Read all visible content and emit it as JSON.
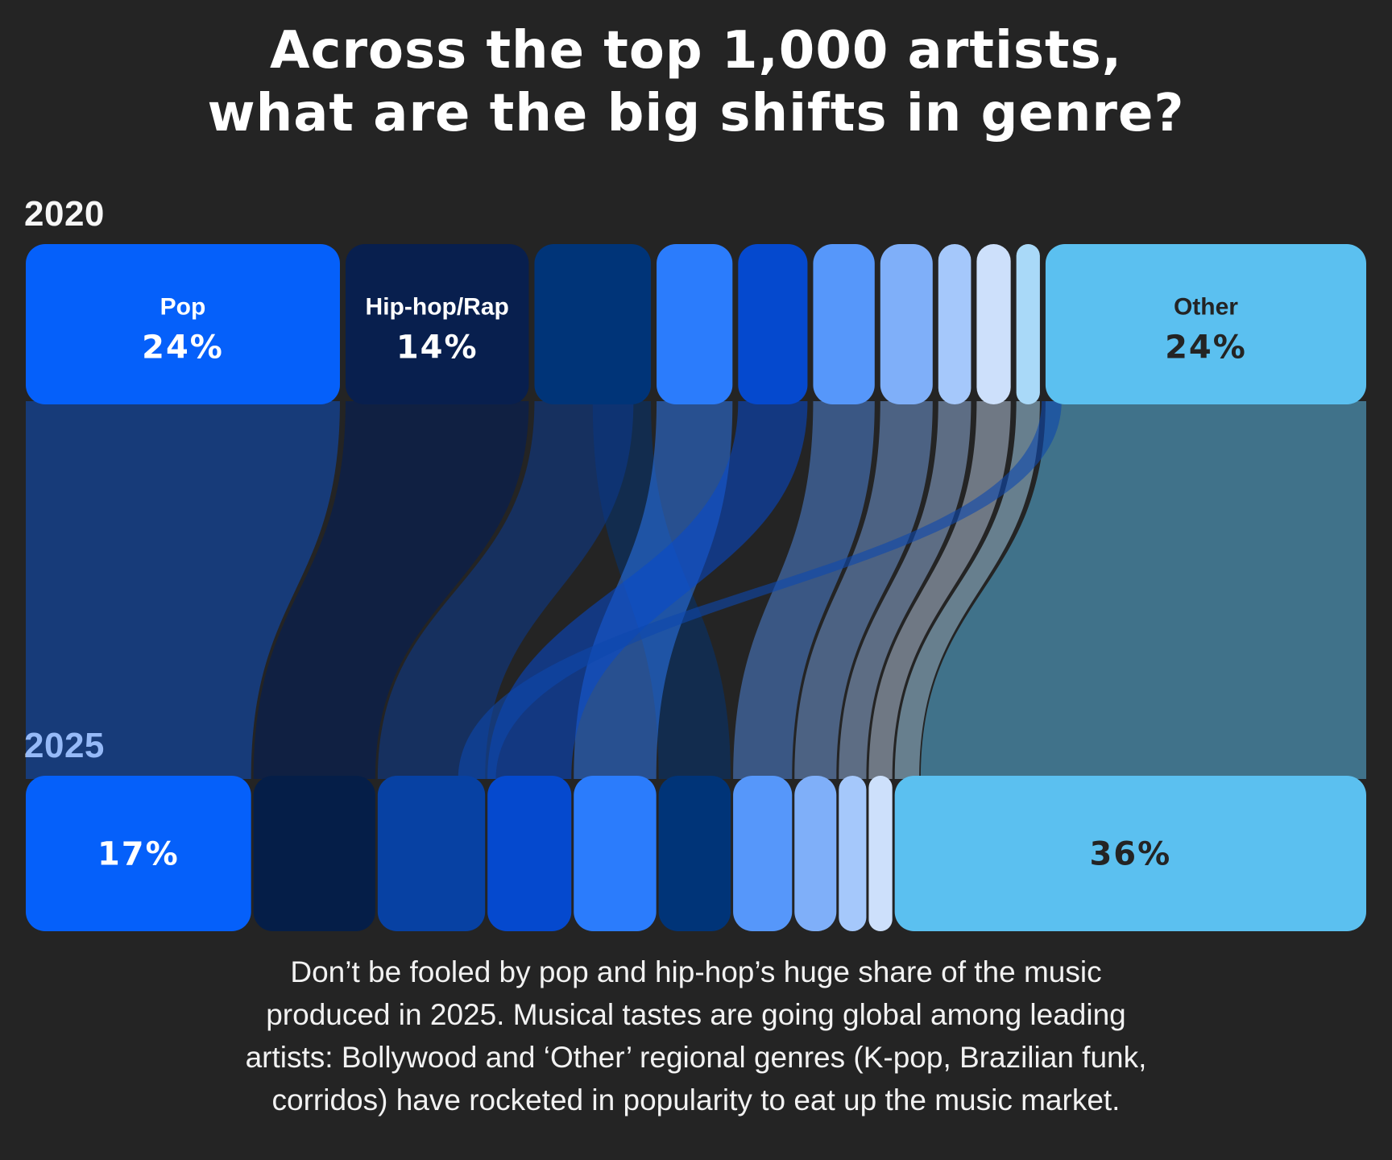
{
  "page": {
    "background": "#242424"
  },
  "title": {
    "line1": "Across the top 1,000 artists,",
    "line2": "what are the big shifts in genre?"
  },
  "footer": {
    "lines": [
      "Don’t be fooled by pop and hip-hop’s huge share of the music",
      "produced in 2025. Musical tastes are going global among leading",
      "artists: Bollywood and ‘Other’ regional genres (K-pop, Brazilian funk,",
      "corridos) have rocketed in popularity to eat up the music market."
    ]
  },
  "chart_data": {
    "type": "sankey",
    "title": "Genre share of the top 1,000 artists, 2020 vs 2025",
    "unit": "%",
    "background": "#242424",
    "rows": [
      {
        "year": "2020",
        "nodes": [
          {
            "label": "Pop",
            "value_label": "24%",
            "pct": 24,
            "color": "#0560FA",
            "text_color": "#FFFFFF"
          },
          {
            "label": "Hip-hop/Rap",
            "value_label": "14%",
            "pct": 14,
            "color": "#081F4E",
            "text_color": "#FFFFFF"
          },
          {
            "label": "",
            "pct": 8.9,
            "color": "#003478"
          },
          {
            "label": "",
            "pct": 5.8,
            "color": "#2B7CFC"
          },
          {
            "label": "",
            "pct": 5.3,
            "color": "#0549CE"
          },
          {
            "label": "",
            "pct": 4.7,
            "color": "#5697FA"
          },
          {
            "label": "",
            "pct": 4.0,
            "color": "#7FAFF9"
          },
          {
            "label": "",
            "pct": 2.5,
            "color": "#A5C8FB"
          },
          {
            "label": "",
            "pct": 2.6,
            "color": "#CDE0FB"
          },
          {
            "label": "",
            "pct": 1.8,
            "color": "#A9D9F8"
          },
          {
            "label": "Other",
            "value_label": "24%",
            "pct": 24.5,
            "color": "#5BC0F0",
            "text_color": "#242424"
          }
        ]
      },
      {
        "year": "2025",
        "nodes": [
          {
            "label": "",
            "value_label": "17%",
            "pct": 17.2,
            "color": "#0560FA",
            "text_color": "#FFFFFF"
          },
          {
            "label": "",
            "pct": 9.3,
            "color": "#051E48"
          },
          {
            "label": "",
            "pct": 8.2,
            "color": "#0741A3"
          },
          {
            "label": "",
            "pct": 6.4,
            "color": "#0549CE"
          },
          {
            "label": "",
            "pct": 6.3,
            "color": "#2B7CFC"
          },
          {
            "label": "",
            "pct": 5.5,
            "color": "#003478"
          },
          {
            "label": "",
            "pct": 4.5,
            "color": "#5697FA"
          },
          {
            "label": "",
            "pct": 3.2,
            "color": "#7FAFF9"
          },
          {
            "label": "",
            "pct": 2.1,
            "color": "#A5C8FB"
          },
          {
            "label": "",
            "pct": 1.8,
            "color": "#CDE0FB"
          },
          {
            "label": "",
            "value_label": "36%",
            "pct": 36,
            "color": "#5BC0F0",
            "text_color": "#242424"
          }
        ]
      }
    ],
    "links": [
      {
        "name": "other-to-other",
        "source": 10,
        "target": 10,
        "color": "#5BC0F0",
        "opacity": 0.5,
        "t0": 0.055,
        "t1": 1
      },
      {
        "name": "seg10-to-other",
        "source": 9,
        "target": 10,
        "color": "#A9D9F8",
        "opacity": 0.5,
        "t0": 0,
        "t1": 0.052
      },
      {
        "name": "seg6-flow",
        "source": 5,
        "target": 6,
        "color": "#5697FA",
        "opacity": 0.45
      },
      {
        "name": "seg7-flow",
        "source": 6,
        "target": 7,
        "color": "#7FAFF9",
        "opacity": 0.45
      },
      {
        "name": "seg8-flow",
        "source": 7,
        "target": 8,
        "color": "#A5C8FB",
        "opacity": 0.45
      },
      {
        "name": "seg9-flow",
        "source": 8,
        "target": 9,
        "color": "#CDE0FB",
        "opacity": 0.45
      },
      {
        "name": "seg3-to-node6",
        "source": 2,
        "target": 5,
        "color": "#003478",
        "opacity": 0.5,
        "s0": 0.5,
        "s1": 1
      },
      {
        "name": "seg3-to-node3",
        "source": 2,
        "target": 2,
        "color": "#0B3A8F",
        "opacity": 0.55,
        "s0": 0,
        "s1": 0.85
      },
      {
        "name": "seg4-flow",
        "source": 3,
        "target": 4,
        "color": "#2B7CFC",
        "opacity": 0.5
      },
      {
        "name": "seg5-flow",
        "source": 4,
        "target": 3,
        "color": "#0549CE",
        "opacity": 0.55
      },
      {
        "name": "pop-flow",
        "source": 0,
        "target": 0,
        "color": "#0560FA",
        "opacity": 0.4
      },
      {
        "name": "hiphop-flow",
        "source": 1,
        "target": 1,
        "color": "#081F4E",
        "opacity": 0.72
      },
      {
        "name": "other-crossing-flow",
        "source": 10,
        "target": 3,
        "color": "#0D47AD",
        "opacity": 0.6,
        "s0": -0.012,
        "s1": 0.05,
        "t0": -0.35,
        "t1": 0.1
      }
    ]
  }
}
